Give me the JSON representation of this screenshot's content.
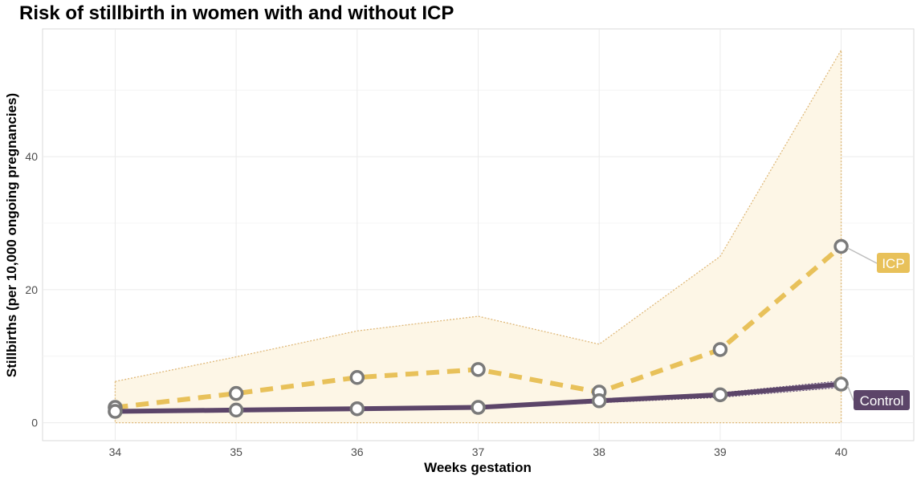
{
  "chart_data": {
    "type": "line",
    "title": "Risk of stillbirth in women with and without ICP",
    "xlabel": "Weeks gestation",
    "ylabel": "Stillbirths (per 10,000 ongoing pregnancies)",
    "x": [
      34,
      35,
      36,
      37,
      38,
      39,
      40
    ],
    "xlim": [
      33.4,
      40.6
    ],
    "ylim": [
      -2.7,
      59.2
    ],
    "yticks": [
      0,
      20,
      40
    ],
    "grid": true,
    "series": [
      {
        "name": "ICP",
        "color": "#e8c15a",
        "line_style": "dashed",
        "values": [
          2.3,
          4.4,
          6.8,
          8.0,
          4.6,
          11.0,
          26.5
        ],
        "ci_upper": [
          6.2,
          9.9,
          13.8,
          16.0,
          11.8,
          25.0,
          56.0
        ],
        "ci_lower": [
          0,
          0,
          0,
          0,
          0,
          0,
          0
        ]
      },
      {
        "name": "Control",
        "color": "#5c4569",
        "line_style": "solid",
        "values": [
          1.7,
          1.9,
          2.1,
          2.3,
          3.3,
          4.2,
          5.8
        ],
        "ci_upper": [
          1.9,
          2.1,
          2.3,
          2.5,
          3.5,
          4.5,
          6.3
        ],
        "ci_lower": [
          1.5,
          1.7,
          1.9,
          2.1,
          3.0,
          3.8,
          5.3
        ]
      }
    ],
    "end_labels": [
      "ICP",
      "Control"
    ]
  }
}
